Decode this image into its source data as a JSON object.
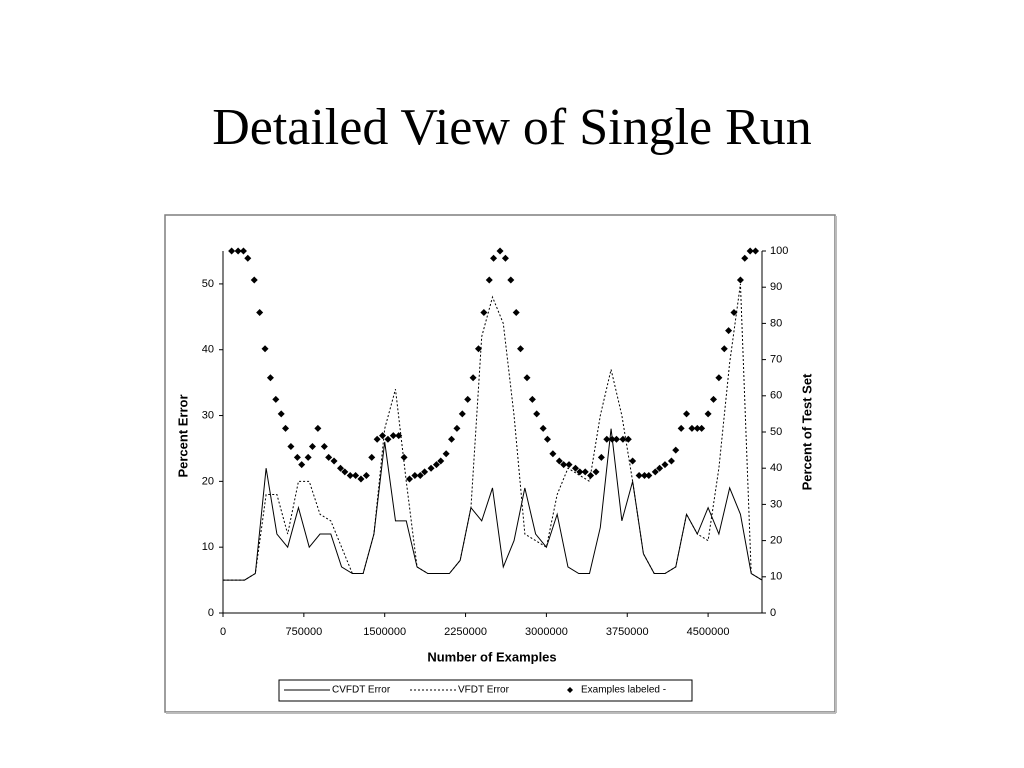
{
  "slide": {
    "title": "Detailed View of Single Run"
  },
  "chart_data": {
    "type": "line",
    "xlabel": "Number of Examples",
    "ylabel": "Percent Error",
    "y2label": "Percent of Test Set",
    "xlim": [
      0,
      5000000
    ],
    "xticks": [
      0,
      750000,
      1500000,
      2250000,
      3000000,
      3750000,
      4500000
    ],
    "ylim": [
      0,
      55
    ],
    "yticks": [
      0,
      10,
      20,
      30,
      40,
      50
    ],
    "y2lim": [
      0,
      100
    ],
    "y2ticks": [
      0,
      10,
      20,
      30,
      40,
      50,
      60,
      70,
      80,
      90,
      100
    ],
    "grid": false,
    "legend": "bottom",
    "x": [
      0,
      100000,
      200000,
      300000,
      400000,
      500000,
      600000,
      700000,
      800000,
      900000,
      1000000,
      1100000,
      1200000,
      1300000,
      1400000,
      1500000,
      1600000,
      1700000,
      1800000,
      1900000,
      2000000,
      2100000,
      2200000,
      2300000,
      2400000,
      2500000,
      2600000,
      2700000,
      2800000,
      2900000,
      3000000,
      3100000,
      3200000,
      3300000,
      3400000,
      3500000,
      3600000,
      3700000,
      3800000,
      3900000,
      4000000,
      4100000,
      4200000,
      4300000,
      4400000,
      4500000,
      4600000,
      4700000,
      4800000,
      4900000,
      5000000
    ],
    "series": [
      {
        "name": "CVFDT Error",
        "type": "line",
        "dash": "solid",
        "color": "#000000",
        "values": [
          5,
          5,
          5,
          6,
          22,
          12,
          10,
          16,
          10,
          12,
          12,
          7,
          6,
          6,
          12,
          26,
          14,
          14,
          7,
          6,
          6,
          6,
          8,
          16,
          14,
          19,
          7,
          11,
          19,
          12,
          10,
          15,
          7,
          6,
          6,
          13,
          28,
          14,
          20,
          9,
          6,
          6,
          7,
          15,
          12,
          16,
          12,
          19,
          15,
          6,
          5
        ]
      },
      {
        "name": "VFDT Error",
        "type": "line",
        "dash": "dotted",
        "color": "#000000",
        "values": [
          5,
          5,
          5,
          6,
          18,
          18,
          12,
          20,
          20,
          15,
          14,
          10,
          6,
          6,
          12,
          28,
          34,
          20,
          7,
          6,
          6,
          6,
          8,
          16,
          42,
          48,
          44,
          30,
          12,
          11,
          10,
          18,
          22,
          21,
          20,
          30,
          37,
          30,
          20,
          9,
          6,
          6,
          7,
          15,
          12,
          11,
          22,
          38,
          50,
          6,
          5
        ]
      },
      {
        "name": "Examples labeled -",
        "type": "scatter",
        "marker": "diamond",
        "color": "#000000",
        "axis": "y2",
        "x": [
          80000,
          140000,
          190000,
          230000,
          290000,
          340000,
          390000,
          440000,
          490000,
          540000,
          580000,
          630000,
          690000,
          730000,
          790000,
          830000,
          880000,
          940000,
          980000,
          1030000,
          1090000,
          1130000,
          1180000,
          1230000,
          1280000,
          1330000,
          1380000,
          1430000,
          1480000,
          1530000,
          1580000,
          1630000,
          1680000,
          1730000,
          1780000,
          1830000,
          1870000,
          1930000,
          1980000,
          2020000,
          2070000,
          2120000,
          2170000,
          2220000,
          2270000,
          2320000,
          2370000,
          2420000,
          2470000,
          2510000,
          2570000,
          2620000,
          2670000,
          2720000,
          2760000,
          2820000,
          2870000,
          2910000,
          2970000,
          3010000,
          3060000,
          3120000,
          3160000,
          3210000,
          3270000,
          3310000,
          3360000,
          3410000,
          3460000,
          3510000,
          3560000,
          3610000,
          3650000,
          3710000,
          3760000,
          3800000,
          3860000,
          3910000,
          3950000,
          4010000,
          4050000,
          4100000,
          4160000,
          4200000,
          4250000,
          4300000,
          4350000,
          4400000,
          4440000,
          4500000,
          4550000,
          4600000,
          4650000,
          4690000,
          4740000,
          4800000,
          4840000,
          4890000,
          4940000
        ],
        "values": [
          100,
          100,
          100,
          98,
          92,
          83,
          73,
          65,
          59,
          55,
          51,
          46,
          43,
          41,
          43,
          46,
          51,
          46,
          43,
          42,
          40,
          39,
          38,
          38,
          37,
          38,
          43,
          48,
          49,
          48,
          49,
          49,
          43,
          37,
          38,
          38,
          39,
          40,
          41,
          42,
          44,
          48,
          51,
          55,
          59,
          65,
          73,
          83,
          92,
          98,
          100,
          98,
          92,
          83,
          73,
          65,
          59,
          55,
          51,
          48,
          44,
          42,
          41,
          41,
          40,
          39,
          39,
          38,
          39,
          43,
          48,
          48,
          48,
          48,
          48,
          42,
          38,
          38,
          38,
          39,
          40,
          41,
          42,
          45,
          51,
          55,
          51,
          51,
          51,
          55,
          59,
          65,
          73,
          78,
          83,
          92,
          98,
          100,
          100
        ]
      }
    ]
  }
}
